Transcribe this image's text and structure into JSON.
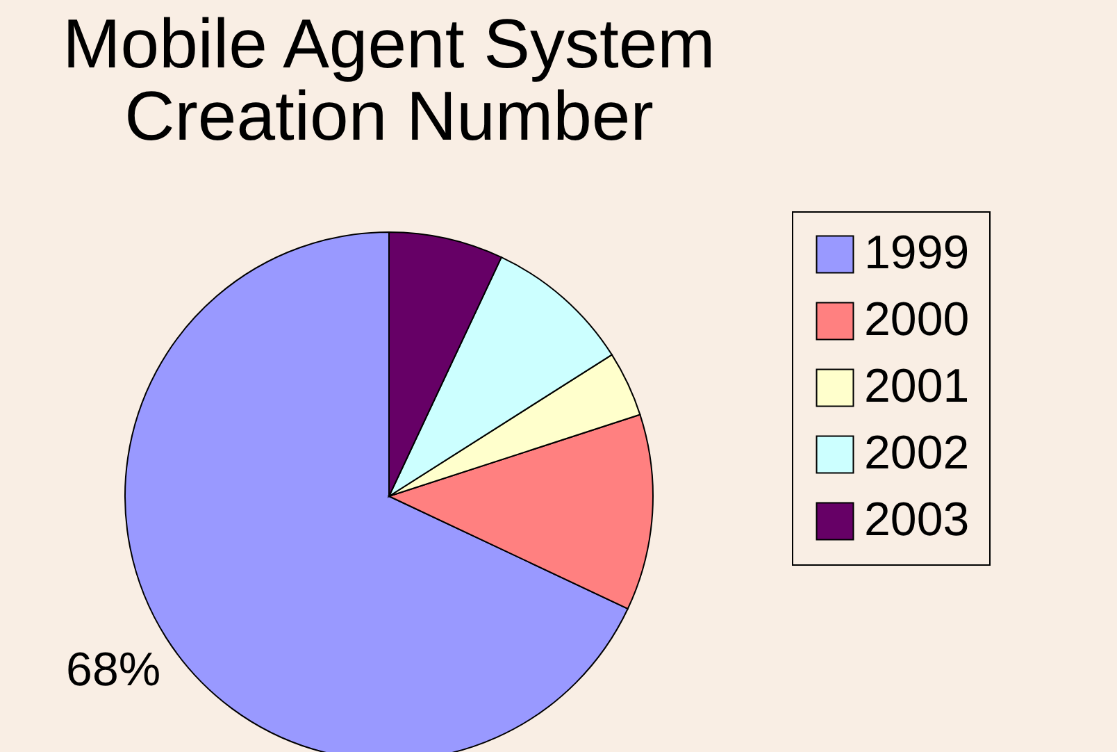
{
  "chart_data": {
    "type": "pie",
    "title": [
      "Mobile Agent System",
      "Creation Number"
    ],
    "categories": [
      "1999",
      "2000",
      "2001",
      "2002",
      "2003"
    ],
    "values": [
      68,
      12,
      4,
      9,
      7
    ],
    "colors": [
      "#9999ff",
      "#ff8080",
      "#ffffcc",
      "#ccffff",
      "#660066"
    ],
    "value_labels": [
      "68%",
      null,
      null,
      null,
      null
    ],
    "legend": "right"
  }
}
